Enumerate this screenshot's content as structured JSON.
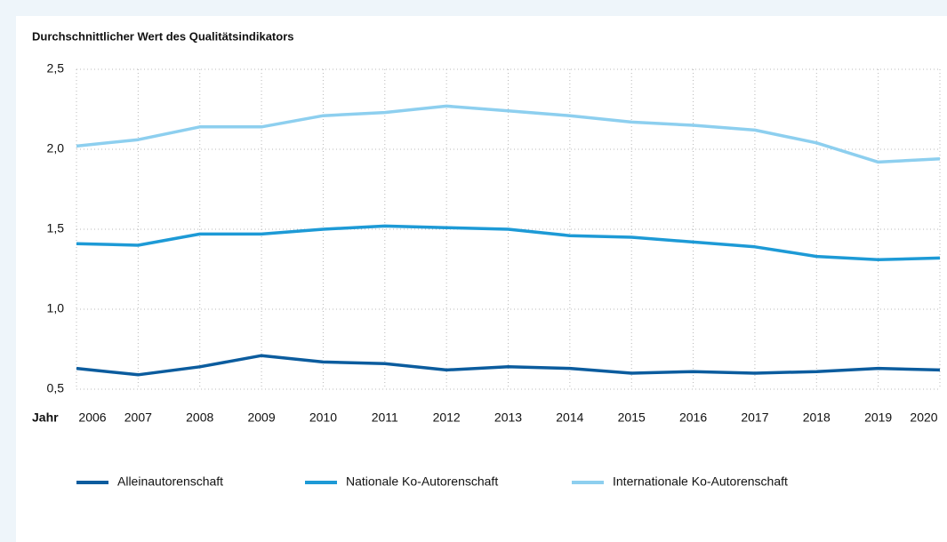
{
  "chart_data": {
    "type": "line",
    "title": "Durchschnittlicher Wert des Qualitätsindikators",
    "xlabel": "Jahr",
    "categories": [
      "2006",
      "2007",
      "2008",
      "2009",
      "2010",
      "2011",
      "2012",
      "2013",
      "2014",
      "2015",
      "2016",
      "2017",
      "2018",
      "2019",
      "2020"
    ],
    "series": [
      {
        "name": "Alleinautorenschaft",
        "color": "#0b5c9e",
        "values": [
          0.63,
          0.59,
          0.64,
          0.71,
          0.67,
          0.66,
          0.62,
          0.64,
          0.63,
          0.6,
          0.61,
          0.6,
          0.61,
          0.63,
          0.62
        ]
      },
      {
        "name": "Nationale Ko-Autorenschaft",
        "color": "#1d9ad6",
        "values": [
          1.41,
          1.4,
          1.47,
          1.47,
          1.5,
          1.52,
          1.51,
          1.5,
          1.46,
          1.45,
          1.42,
          1.39,
          1.33,
          1.31,
          1.32
        ]
      },
      {
        "name": "Internationale Ko-Autorenschaft",
        "color": "#8dcfef",
        "values": [
          2.02,
          2.06,
          2.14,
          2.14,
          2.21,
          2.23,
          2.27,
          2.24,
          2.21,
          2.17,
          2.15,
          2.12,
          2.04,
          1.92,
          1.94
        ]
      }
    ],
    "ylim": [
      0.5,
      2.5
    ],
    "yticks": [
      {
        "value": 0.5,
        "label": "0,5"
      },
      {
        "value": 1.0,
        "label": "1,0"
      },
      {
        "value": 1.5,
        "label": "1,5"
      },
      {
        "value": 2.0,
        "label": "2,0"
      },
      {
        "value": 2.5,
        "label": "2,5"
      }
    ],
    "grid": true
  }
}
